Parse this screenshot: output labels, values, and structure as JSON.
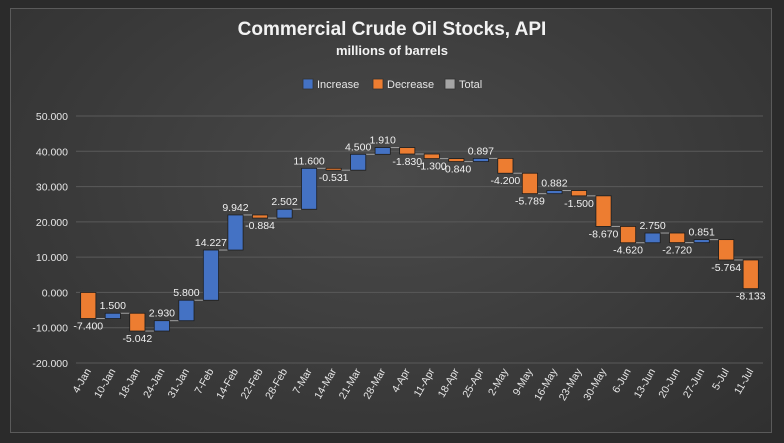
{
  "chart_data": {
    "type": "bar",
    "subtype": "waterfall",
    "title": "Commercial Crude Oil Stocks, API",
    "subtitle": "millions of barrels",
    "legend": [
      {
        "name": "Increase",
        "color": "#4472c4"
      },
      {
        "name": "Decrease",
        "color": "#ed7d31"
      },
      {
        "name": "Total",
        "color": "#a5a5a5"
      }
    ],
    "legend_position": "top",
    "grid": true,
    "ylim": [
      -20,
      50
    ],
    "y_ticks": [
      "50.000",
      "40.000",
      "30.000",
      "20.000",
      "10.000",
      "0.000",
      "-10.000",
      "-20.000"
    ],
    "y_tick_values": [
      50,
      40,
      30,
      20,
      10,
      0,
      -10,
      -20
    ],
    "categories": [
      "4-Jan",
      "10-Jan",
      "18-Jan",
      "24-Jan",
      "31-Jan",
      "7-Feb",
      "14-Feb",
      "22-Feb",
      "28-Feb",
      "7-Mar",
      "14-Mar",
      "21-Mar",
      "28-Mar",
      "4-Apr",
      "11-Apr",
      "18-Apr",
      "25-Apr",
      "2-May",
      "9-May",
      "16-May",
      "23-May",
      "30-May",
      "6-Jun",
      "13-Jun",
      "20-Jun",
      "27-Jun",
      "5-Jul",
      "11-Jul"
    ],
    "values": [
      -7.4,
      1.5,
      -5.042,
      2.93,
      5.8,
      14.227,
      9.942,
      -0.884,
      2.502,
      11.6,
      -0.531,
      4.5,
      1.91,
      -1.83,
      -1.3,
      -0.84,
      0.897,
      -4.2,
      -5.789,
      0.882,
      -1.5,
      -8.67,
      -4.62,
      2.75,
      -2.72,
      0.851,
      -5.764,
      -8.133
    ],
    "data_labels": [
      "-7.400",
      "1.500",
      "-5.042",
      "2.930",
      "5.800",
      "14.227",
      "9.942",
      "-0.884",
      "2.502",
      "11.600",
      "-0.531",
      "4.500",
      "1.910",
      "-1.830",
      "-1.300",
      "-0.840",
      "0.897",
      "-4.200",
      "-5.789",
      "0.882",
      "-1.500",
      "-8.670",
      "-4.620",
      "2.750",
      "-2.720",
      "0.851",
      "-5.764",
      "-8.133"
    ],
    "colors": {
      "increase": "#4472c4",
      "decrease": "#ed7d31",
      "total": "#a5a5a5"
    }
  }
}
